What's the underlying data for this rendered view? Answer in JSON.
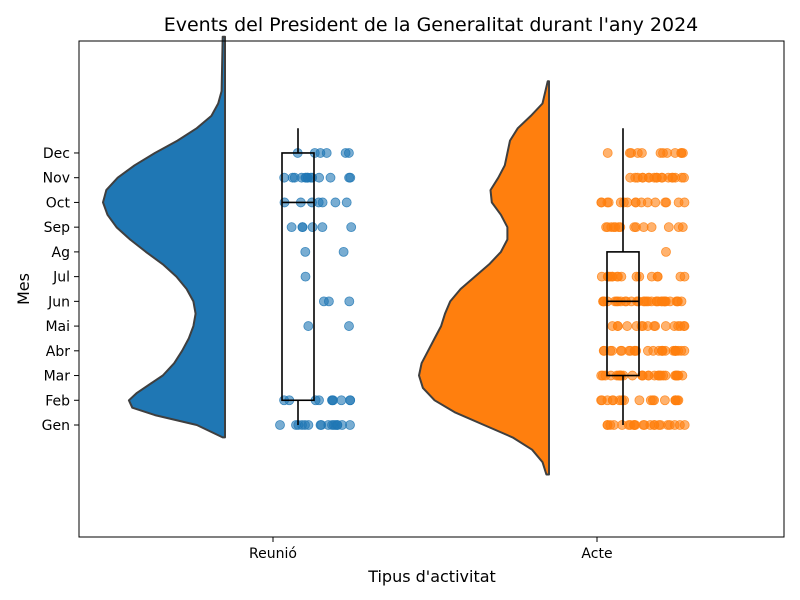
{
  "chart_data": {
    "type": "violin",
    "title": "Events del President de la Generalitat durant l'any 2024",
    "xlabel": "Tipus d'activitat",
    "ylabel": "Mes",
    "y_ticks": [
      "Gen",
      "Feb",
      "Mar",
      "Abr",
      "Mai",
      "Jun",
      "Jul",
      "Ag",
      "Sep",
      "Oct",
      "Nov",
      "Dec"
    ],
    "grid": false,
    "categories": [
      "Reunió",
      "Acte"
    ],
    "series": [
      {
        "category": "Reunió",
        "color": "#1f77b4",
        "density_support": [
          -0.5,
          15.7
        ],
        "density_curve": [
          [
            -0.5,
            0.02
          ],
          [
            0,
            0.25
          ],
          [
            0.4,
            0.62
          ],
          [
            0.7,
            0.82
          ],
          [
            1,
            0.85
          ],
          [
            1.3,
            0.78
          ],
          [
            1.7,
            0.65
          ],
          [
            2,
            0.55
          ],
          [
            2.5,
            0.45
          ],
          [
            3,
            0.38
          ],
          [
            3.5,
            0.32
          ],
          [
            4,
            0.28
          ],
          [
            4.5,
            0.26
          ],
          [
            5,
            0.28
          ],
          [
            5.5,
            0.34
          ],
          [
            6,
            0.43
          ],
          [
            6.5,
            0.55
          ],
          [
            7,
            0.7
          ],
          [
            7.5,
            0.84
          ],
          [
            8,
            0.96
          ],
          [
            8.5,
            1.04
          ],
          [
            9,
            1.08
          ],
          [
            9.5,
            1.05
          ],
          [
            10,
            0.95
          ],
          [
            10.5,
            0.8
          ],
          [
            11,
            0.62
          ],
          [
            11.5,
            0.42
          ],
          [
            12,
            0.25
          ],
          [
            12.5,
            0.12
          ],
          [
            13,
            0.06
          ],
          [
            13.5,
            0.03
          ],
          [
            15.7,
            0.02
          ]
        ],
        "box": {
          "whisker_low": 0,
          "q1": 1,
          "median": 9,
          "q3": 11,
          "whisker_high": 12
        },
        "points": [
          {
            "month": 1,
            "n": 16
          },
          {
            "month": 2,
            "n": 10
          },
          {
            "month": 6,
            "n": 3
          },
          {
            "month": 5,
            "n": 2
          },
          {
            "month": 7,
            "n": 1
          },
          {
            "month": 8,
            "n": 2
          },
          {
            "month": 9,
            "n": 6
          },
          {
            "month": 10,
            "n": 7
          },
          {
            "month": 11,
            "n": 14
          },
          {
            "month": 12,
            "n": 6
          }
        ]
      },
      {
        "category": "Acte",
        "color": "#ff7f0e",
        "density_support": [
          -2.0,
          13.9
        ],
        "density_curve": [
          [
            -2,
            0.02
          ],
          [
            -1.5,
            0.05
          ],
          [
            -1,
            0.13
          ],
          [
            -0.5,
            0.28
          ],
          [
            0,
            0.5
          ],
          [
            0.5,
            0.72
          ],
          [
            1,
            0.88
          ],
          [
            1.5,
            0.97
          ],
          [
            2,
            1.0
          ],
          [
            2.5,
            0.98
          ],
          [
            3,
            0.93
          ],
          [
            3.5,
            0.88
          ],
          [
            4,
            0.83
          ],
          [
            4.5,
            0.8
          ],
          [
            5,
            0.76
          ],
          [
            5.5,
            0.68
          ],
          [
            6,
            0.57
          ],
          [
            6.5,
            0.46
          ],
          [
            7,
            0.37
          ],
          [
            7.5,
            0.32
          ],
          [
            8,
            0.32
          ],
          [
            8.5,
            0.37
          ],
          [
            9,
            0.44
          ],
          [
            9.5,
            0.45
          ],
          [
            10,
            0.39
          ],
          [
            10.5,
            0.34
          ],
          [
            11,
            0.32
          ],
          [
            11.5,
            0.3
          ],
          [
            12,
            0.24
          ],
          [
            12.5,
            0.14
          ],
          [
            13,
            0.05
          ],
          [
            13.9,
            0.01
          ]
        ],
        "box": {
          "whisker_low": 0,
          "q1": 2,
          "median": 5,
          "q3": 7,
          "whisker_high": 12
        },
        "points": [
          {
            "month": 1,
            "n": 22
          },
          {
            "month": 2,
            "n": 18
          },
          {
            "month": 3,
            "n": 30
          },
          {
            "month": 4,
            "n": 26
          },
          {
            "month": 5,
            "n": 16
          },
          {
            "month": 6,
            "n": 32
          },
          {
            "month": 7,
            "n": 16
          },
          {
            "month": 8,
            "n": 1
          },
          {
            "month": 9,
            "n": 14
          },
          {
            "month": 10,
            "n": 16
          },
          {
            "month": 11,
            "n": 18
          },
          {
            "month": 12,
            "n": 12
          }
        ]
      }
    ]
  }
}
